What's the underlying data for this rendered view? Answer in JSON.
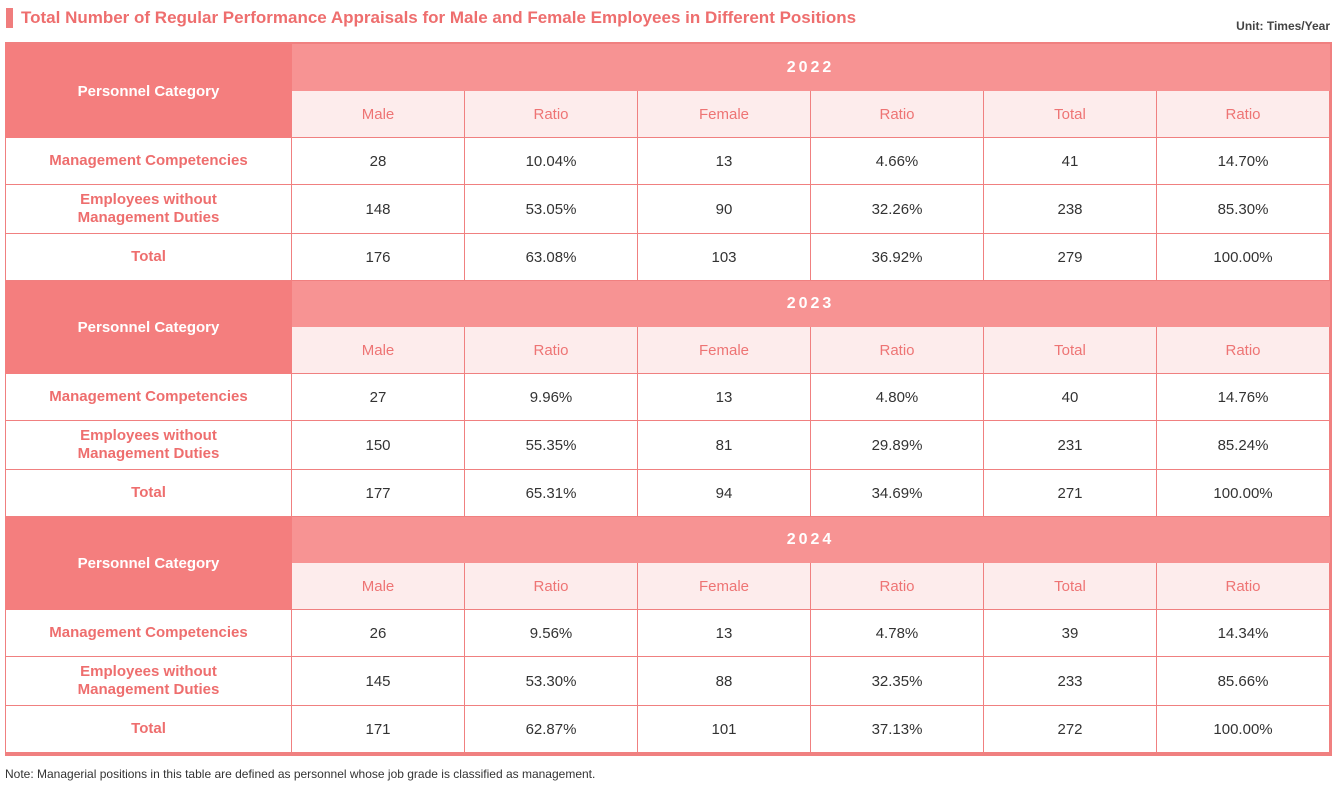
{
  "title": "Total Number of Regular Performance Appraisals for Male and Female Employees in Different Positions",
  "unit": "Unit: Times/Year",
  "note": "Note: Managerial positions in this table are defined as personnel whose job grade is classified as management.",
  "colors": {
    "accent": "#f07d7d",
    "header": "#f79393",
    "subheader_bg": "#fdecec"
  },
  "sections": [
    {
      "year": "2022",
      "category_label": "Personnel Category",
      "headers": [
        "Male",
        "Ratio",
        "Female",
        "Ratio",
        "Total",
        "Ratio"
      ],
      "rows": [
        {
          "label": "Management Competencies",
          "cells": [
            "28",
            "10.04%",
            "13",
            "4.66%",
            "41",
            "14.70%"
          ]
        },
        {
          "label": "Employees without Management Duties",
          "cells": [
            "148",
            "53.05%",
            "90",
            "32.26%",
            "238",
            "85.30%"
          ]
        },
        {
          "label": "Total",
          "cells": [
            "176",
            "63.08%",
            "103",
            "36.92%",
            "279",
            "100.00%"
          ]
        }
      ]
    },
    {
      "year": "2023",
      "category_label": "Personnel Category",
      "headers": [
        "Male",
        "Ratio",
        "Female",
        "Ratio",
        "Total",
        "Ratio"
      ],
      "rows": [
        {
          "label": "Management Competencies",
          "cells": [
            "27",
            "9.96%",
            "13",
            "4.80%",
            "40",
            "14.76%"
          ]
        },
        {
          "label": "Employees without Management Duties",
          "cells": [
            "150",
            "55.35%",
            "81",
            "29.89%",
            "231",
            "85.24%"
          ]
        },
        {
          "label": "Total",
          "cells": [
            "177",
            "65.31%",
            "94",
            "34.69%",
            "271",
            "100.00%"
          ]
        }
      ]
    },
    {
      "year": "2024",
      "category_label": "Personnel Category",
      "headers": [
        "Male",
        "Ratio",
        "Female",
        "Ratio",
        "Total",
        "Ratio"
      ],
      "rows": [
        {
          "label": "Management Competencies",
          "cells": [
            "26",
            "9.56%",
            "13",
            "4.78%",
            "39",
            "14.34%"
          ]
        },
        {
          "label": "Employees without Management Duties",
          "cells": [
            "145",
            "53.30%",
            "88",
            "32.35%",
            "233",
            "85.66%"
          ]
        },
        {
          "label": "Total",
          "cells": [
            "171",
            "62.87%",
            "101",
            "37.13%",
            "272",
            "100.00%"
          ]
        }
      ]
    }
  ]
}
